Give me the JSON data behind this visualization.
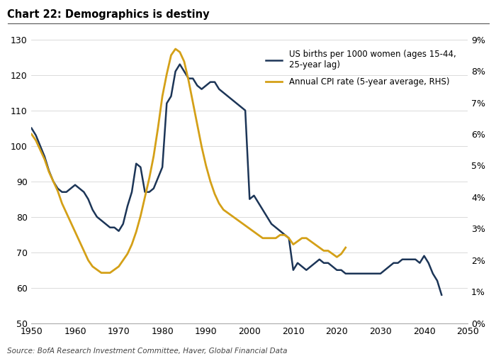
{
  "title": "Chart 22: Demographics is destiny",
  "source": "Source: BofA Research Investment Committee, Haver, Global Financial Data",
  "legend1": "US births per 1000 women (ages 15-44,\n25-year lag)",
  "legend2": "Annual CPI rate (5-year average, RHS)",
  "color1": "#1c3557",
  "color2": "#d4a017",
  "ylim_left": [
    50,
    130
  ],
  "ylim_right": [
    0,
    9
  ],
  "xlim": [
    1950,
    2050
  ],
  "births_x": [
    1950,
    1951,
    1952,
    1953,
    1954,
    1955,
    1956,
    1957,
    1958,
    1959,
    1960,
    1961,
    1962,
    1963,
    1964,
    1965,
    1966,
    1967,
    1968,
    1969,
    1970,
    1971,
    1972,
    1973,
    1974,
    1975,
    1976,
    1977,
    1978,
    1979,
    1980,
    1981,
    1982,
    1983,
    1984,
    1985,
    1986,
    1987,
    1988,
    1989,
    1990,
    1991,
    1992,
    1993,
    1994,
    1995,
    1996,
    1997,
    1998,
    1999,
    2000,
    2001,
    2002,
    2003,
    2004,
    2005,
    2006,
    2007,
    2008,
    2009,
    2010,
    2011,
    2012,
    2013,
    2014,
    2015,
    2016,
    2017,
    2018,
    2019,
    2020,
    2021,
    2022,
    2023,
    2024,
    2025,
    2026,
    2027,
    2028,
    2029,
    2030,
    2031,
    2032,
    2033,
    2034,
    2035,
    2036,
    2037,
    2038,
    2039,
    2040,
    2041,
    2042,
    2043,
    2044
  ],
  "births_y": [
    105,
    103,
    100,
    97,
    93,
    90,
    88,
    87,
    87,
    88,
    89,
    88,
    87,
    85,
    82,
    80,
    79,
    78,
    77,
    77,
    76,
    78,
    83,
    87,
    95,
    94,
    87,
    87,
    88,
    91,
    94,
    112,
    114,
    121,
    123,
    121,
    119,
    119,
    117,
    116,
    117,
    118,
    118,
    116,
    115,
    114,
    113,
    112,
    111,
    110,
    85,
    86,
    84,
    82,
    80,
    78,
    77,
    76,
    75,
    74,
    65,
    67,
    66,
    65,
    66,
    67,
    68,
    67,
    67,
    66,
    65,
    65,
    64,
    64,
    64,
    64,
    64,
    64,
    64,
    64,
    64,
    65,
    66,
    67,
    67,
    68,
    68,
    68,
    68,
    67,
    69,
    67,
    64,
    62,
    58
  ],
  "cpi_x": [
    1950,
    1951,
    1952,
    1953,
    1954,
    1955,
    1956,
    1957,
    1958,
    1959,
    1960,
    1961,
    1962,
    1963,
    1964,
    1965,
    1966,
    1967,
    1968,
    1969,
    1970,
    1971,
    1972,
    1973,
    1974,
    1975,
    1976,
    1977,
    1978,
    1979,
    1980,
    1981,
    1982,
    1983,
    1984,
    1985,
    1986,
    1987,
    1988,
    1989,
    1990,
    1991,
    1992,
    1993,
    1994,
    1995,
    1996,
    1997,
    1998,
    1999,
    2000,
    2001,
    2002,
    2003,
    2004,
    2005,
    2006,
    2007,
    2008,
    2009,
    2010,
    2011,
    2012,
    2013,
    2014,
    2015,
    2016,
    2017,
    2018,
    2019,
    2020,
    2021,
    2022
  ],
  "cpi_y": [
    6.0,
    5.8,
    5.5,
    5.2,
    4.8,
    4.5,
    4.2,
    3.8,
    3.5,
    3.2,
    2.9,
    2.6,
    2.3,
    2.0,
    1.8,
    1.7,
    1.6,
    1.6,
    1.6,
    1.7,
    1.8,
    2.0,
    2.2,
    2.5,
    2.9,
    3.4,
    4.0,
    4.6,
    5.3,
    6.2,
    7.2,
    7.9,
    8.5,
    8.7,
    8.6,
    8.3,
    7.7,
    7.0,
    6.3,
    5.6,
    5.0,
    4.5,
    4.1,
    3.8,
    3.6,
    3.5,
    3.4,
    3.3,
    3.2,
    3.1,
    3.0,
    2.9,
    2.8,
    2.7,
    2.7,
    2.7,
    2.7,
    2.8,
    2.8,
    2.7,
    2.5,
    2.6,
    2.7,
    2.7,
    2.6,
    2.5,
    2.4,
    2.3,
    2.3,
    2.2,
    2.1,
    2.2,
    2.4
  ]
}
